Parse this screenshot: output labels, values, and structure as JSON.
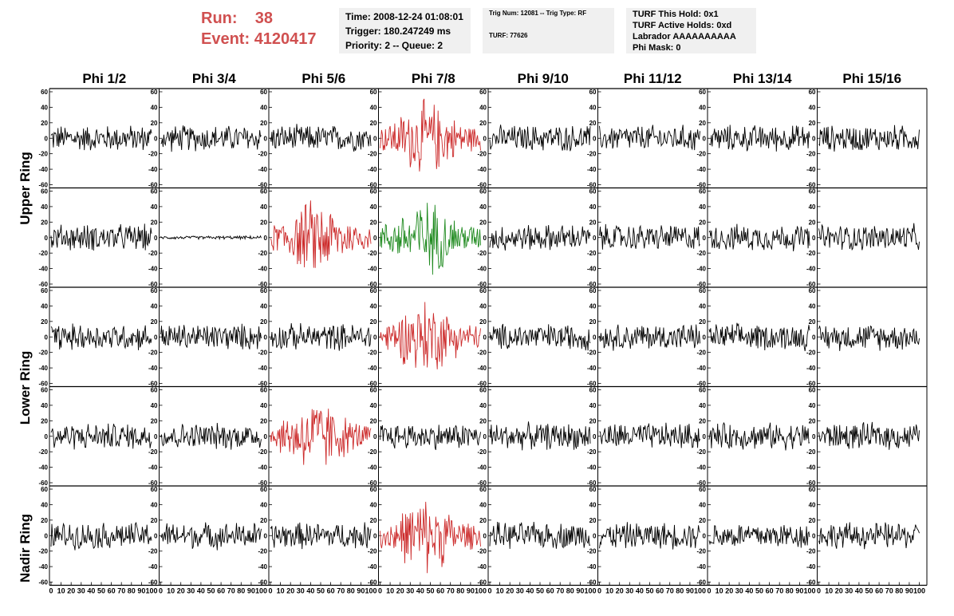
{
  "header": {
    "run_label": "Run:",
    "run_value": "38",
    "event_label": "Event:",
    "event_value": "4120417"
  },
  "info": {
    "time": "Time: 2008-12-24 01:08:01",
    "trigger": "Trigger: 180.247249 ms",
    "priority": "Priority: 2 -- Queue: 2",
    "trig_num": "Trig Num: 12081 -- Trig Type: RF",
    "turf": "TURF: 77626",
    "turf_hold": "TURF This Hold: 0x1",
    "turf_active": "TURF Active Holds: 0xd",
    "labrador": "Labrador AAAAAAAAAA",
    "phi_mask": "Phi Mask: 0"
  },
  "colors": {
    "normal": "#000000",
    "triggered": "#cc2a2a",
    "hold": "#1f8a1f"
  },
  "chart_data": {
    "type": "line",
    "columns": [
      "Phi 1/2",
      "Phi 3/4",
      "Phi 5/6",
      "Phi 7/8",
      "Phi 9/10",
      "Phi 11/12",
      "Phi 13/14",
      "Phi 15/16"
    ],
    "ring_labels": [
      "Upper Ring",
      "Lower Ring",
      "Nadir Ring"
    ],
    "xlim": [
      0,
      100
    ],
    "ylim": [
      -60,
      60
    ],
    "x_ticks": [
      "0",
      "10",
      "20",
      "30",
      "40",
      "50",
      "60",
      "70",
      "80",
      "90",
      "100"
    ],
    "y_ticks": [
      "60",
      "40",
      "20",
      "0",
      "-20",
      "-40",
      "-60"
    ],
    "panels": [
      [
        "black",
        "black",
        "black",
        "red",
        "black",
        "black",
        "black",
        "black"
      ],
      [
        "black",
        "flat",
        "red",
        "green",
        "black",
        "black",
        "black",
        "black"
      ],
      [
        "black",
        "black",
        "black",
        "red",
        "black",
        "black",
        "black",
        "black"
      ],
      [
        "black",
        "black",
        "red",
        "black",
        "black",
        "black",
        "black",
        "black"
      ],
      [
        "black",
        "black",
        "black",
        "red",
        "black",
        "black",
        "black",
        "black"
      ]
    ]
  }
}
